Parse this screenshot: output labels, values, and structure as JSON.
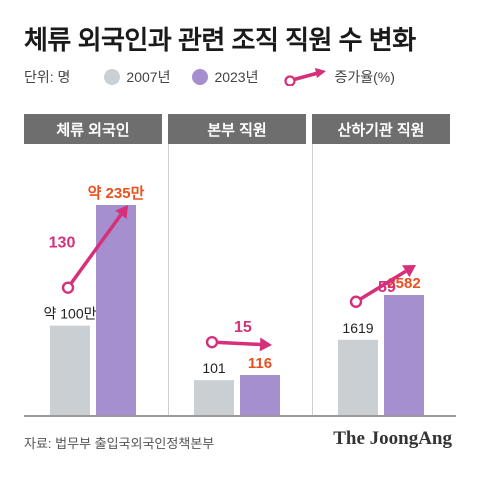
{
  "title": "체류 외국인과 관련 조직 직원 수 변화",
  "legend": {
    "unit": "단위: 명",
    "series_a": "2007년",
    "series_b": "2023년",
    "growth": "증가율(%)"
  },
  "colors": {
    "series_a": "#c9cfd2",
    "series_b": "#a58fcf",
    "arrow": "#d6307a",
    "growth_label": "#d6307a",
    "value_highlight": "#e8501e",
    "header": "#6e6e6e"
  },
  "chart_data": [
    {
      "type": "bar",
      "title": "체류 외국인",
      "categories": [
        "2007년",
        "2023년"
      ],
      "values": [
        1000000,
        2350000
      ],
      "value_labels": [
        "약 100만",
        "약 235만"
      ],
      "growth_percent": 130,
      "growth_label": "130"
    },
    {
      "type": "bar",
      "title": "본부 직원",
      "categories": [
        "2007년",
        "2023년"
      ],
      "values": [
        101,
        116
      ],
      "value_labels": [
        "101",
        "116"
      ],
      "growth_percent": 15,
      "growth_label": "15"
    },
    {
      "type": "bar",
      "title": "산하기관 직원",
      "categories": [
        "2007년",
        "2023년"
      ],
      "values": [
        1619,
        2582
      ],
      "value_labels": [
        "1619",
        "2582"
      ],
      "growth_percent": 59,
      "growth_label": "59"
    }
  ],
  "source": "자료: 법무부 출입국외국인정책본부",
  "logo": "The JoongAng"
}
